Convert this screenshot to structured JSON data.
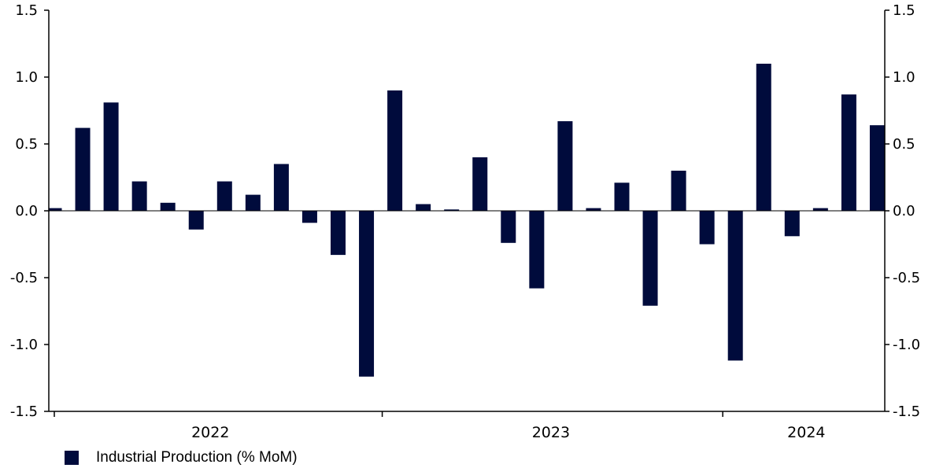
{
  "chart_data": {
    "type": "bar",
    "title": "",
    "xlabel": "",
    "ylabel": "",
    "ylim": [
      -1.5,
      1.5
    ],
    "yticks": [
      "1.5",
      "1.0",
      "0.5",
      "0.0",
      "-0.5",
      "-1.0",
      "-1.5"
    ],
    "ytick_values": [
      1.5,
      1.0,
      0.5,
      0.0,
      -0.5,
      -1.0,
      -1.5
    ],
    "secondary_y_axis": true,
    "grid": false,
    "legend_position": "bottom-left",
    "colors": {
      "bar": "#000b3c",
      "axis": "#000000"
    },
    "categories": [
      "2022-01",
      "2022-02",
      "2022-03",
      "2022-04",
      "2022-05",
      "2022-06",
      "2022-07",
      "2022-08",
      "2022-09",
      "2022-10",
      "2022-11",
      "2022-12",
      "2023-01",
      "2023-02",
      "2023-03",
      "2023-04",
      "2023-05",
      "2023-06",
      "2023-07",
      "2023-08",
      "2023-09",
      "2023-10",
      "2023-11",
      "2023-12",
      "2024-01",
      "2024-02",
      "2024-03",
      "2024-04",
      "2024-05",
      "2024-06"
    ],
    "years": [
      {
        "label": "2022",
        "start": 0,
        "count": 12
      },
      {
        "label": "2023",
        "start": 12,
        "count": 12
      },
      {
        "label": "2024",
        "start": 24,
        "count": 6
      }
    ],
    "series": [
      {
        "name": "Industrial Production (% MoM)",
        "values": [
          0.02,
          0.62,
          0.81,
          0.22,
          0.06,
          -0.14,
          0.22,
          0.12,
          0.35,
          -0.09,
          -0.33,
          -1.24,
          0.9,
          0.05,
          0.01,
          0.4,
          -0.24,
          -0.58,
          0.67,
          0.02,
          0.21,
          -0.71,
          0.3,
          -0.25,
          -1.12,
          1.1,
          -0.19,
          0.02,
          0.87,
          0.64
        ]
      }
    ]
  }
}
